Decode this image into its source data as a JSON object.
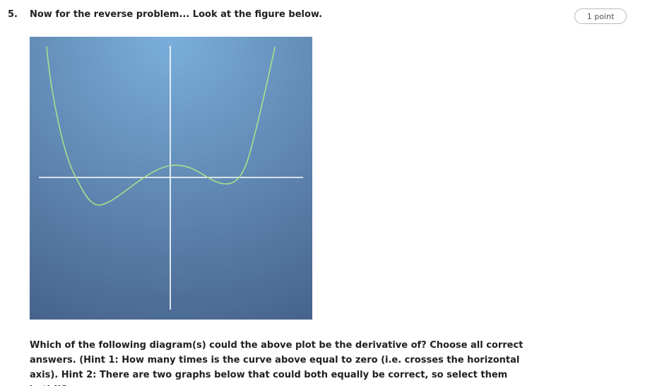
{
  "question": {
    "number": "5.",
    "title": "Now for the reverse problem... Look at the figure below.",
    "points": "1 point",
    "prompt": "Which of the following diagram(s) could the above plot be the derivative of? Choose all correct answers. (Hint 1: How many times is the curve above equal to zero (i.e. crosses the horizontal axis). Hint 2: There are two graphs below that could both equally be correct, so select them both!)?"
  },
  "figure": {
    "colors": {
      "background_top": "#78acd8",
      "background_bottom": "#47638b",
      "axes": "#ffffff",
      "curve": "#a8e08c"
    }
  }
}
